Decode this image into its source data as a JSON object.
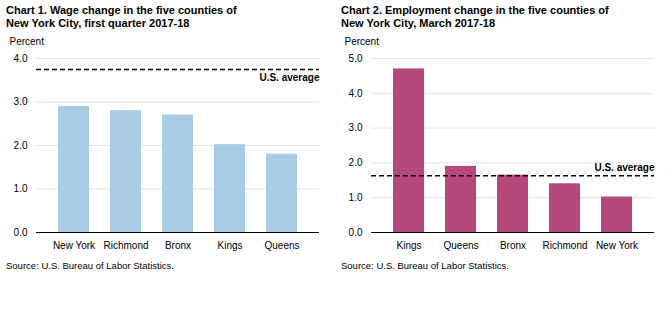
{
  "chart_data": [
    {
      "type": "bar",
      "title": "Chart 1. Wage change in the five counties of\nNew York City, first quarter 2017-18",
      "ylabel": "Percent",
      "categories": [
        "New York",
        "Richmond",
        "Bronx",
        "Kings",
        "Queens"
      ],
      "values": [
        2.9,
        2.8,
        2.7,
        2.02,
        1.8
      ],
      "color": "#a8cce4",
      "ylim": [
        0,
        4
      ],
      "yticks": [
        0,
        1,
        2,
        3,
        4
      ],
      "grid": true,
      "average_line": {
        "value": 3.75,
        "label": "U.S. average"
      },
      "source": "Source: U.S. Bureau of Labor Statistics."
    },
    {
      "type": "bar",
      "title": "Chart 2. Employment change in the five counties of\nNew York City, March 2017-18",
      "ylabel": "Percent",
      "categories": [
        "Kings",
        "Queens",
        "Bronx",
        "Richmond",
        "New York"
      ],
      "values": [
        4.7,
        1.9,
        1.65,
        1.4,
        1.02
      ],
      "color": "#b5477a",
      "ylim": [
        0,
        5
      ],
      "yticks": [
        0,
        1,
        2,
        3,
        4,
        5
      ],
      "grid": true,
      "average_line": {
        "value": 1.63,
        "label": "U.S. average"
      },
      "source": "Source: U.S. Bureau of Labor Statistics."
    }
  ]
}
